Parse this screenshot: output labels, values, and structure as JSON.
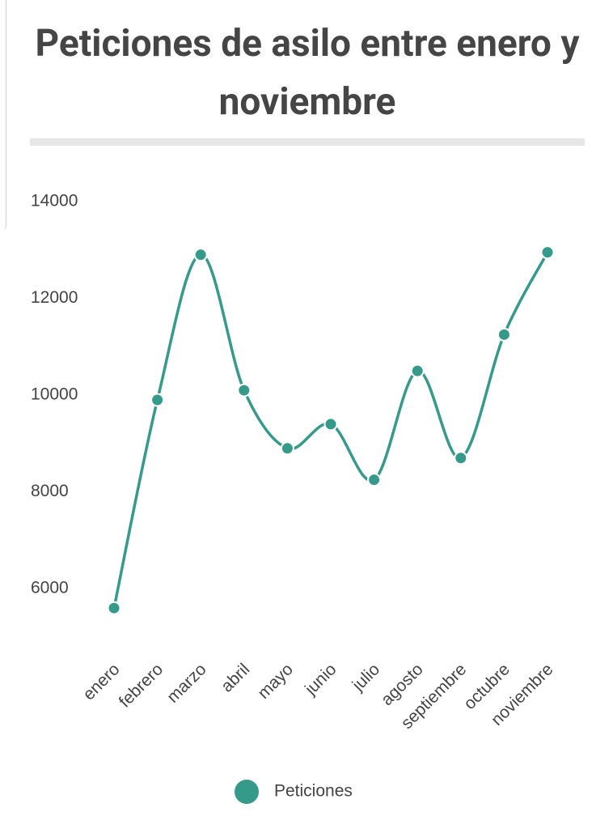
{
  "chart_data": {
    "type": "line",
    "title": "Peticiones de asilo entre enero y noviembre",
    "categories": [
      "enero",
      "febrero",
      "marzo",
      "abril",
      "mayo",
      "junio",
      "julio",
      "agosto",
      "septiembre",
      "octubre",
      "noviembre"
    ],
    "series": [
      {
        "name": "Peticiones",
        "color": "#359a89",
        "values": [
          5600,
          9900,
          12900,
          10100,
          8900,
          9400,
          8250,
          10500,
          8700,
          11250,
          12950
        ]
      }
    ],
    "ylim": [
      5200,
      14400
    ],
    "yticks": [
      6000,
      8000,
      10000,
      12000,
      14000
    ],
    "grid": false,
    "smooth": true,
    "legend": "bottom"
  }
}
